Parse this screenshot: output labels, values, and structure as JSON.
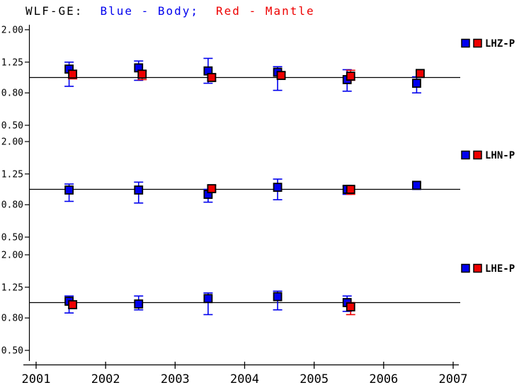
{
  "chart_data": {
    "type": "scatter",
    "title": {
      "station": "WLF-GE:",
      "legend_blue": "Blue - Body;",
      "legend_red": "Red - Mantle"
    },
    "x_range": [
      2001,
      2007
    ],
    "x_ticks": [
      "2001",
      "2002",
      "2003",
      "2004",
      "2005",
      "2006",
      "2007"
    ],
    "y_scale": "log",
    "y_range": [
      0.5,
      2.0
    ],
    "y_ticks": [
      "2.00",
      "1.25",
      "0.80",
      "0.50"
    ],
    "y_tick_values": [
      2.0,
      1.25,
      0.8,
      0.5
    ],
    "reference_value": 1.0,
    "grid": "off",
    "legend_position": "top-right-of-each-panel",
    "colors": {
      "body": "#0000ee",
      "mantle": "#ee0000",
      "axis": "#000000"
    },
    "series_names": {
      "body": "Body",
      "mantle": "Mantle"
    },
    "panels": [
      {
        "label": "LHZ-P",
        "body": [
          {
            "x": 2001.5,
            "v": 1.13,
            "lo": 0.88,
            "hi": 1.25
          },
          {
            "x": 2002.5,
            "v": 1.15,
            "lo": 0.96,
            "hi": 1.27
          },
          {
            "x": 2003.5,
            "v": 1.1,
            "lo": 0.92,
            "hi": 1.32
          },
          {
            "x": 2004.5,
            "v": 1.08,
            "lo": 0.83,
            "hi": 1.17
          },
          {
            "x": 2005.5,
            "v": 0.97,
            "lo": 0.82,
            "hi": 1.12
          },
          {
            "x": 2006.5,
            "v": 0.92,
            "lo": 0.8,
            "hi": 1.01
          }
        ],
        "mantle": [
          {
            "x": 2001.5,
            "v": 1.05,
            "lo": 0.98,
            "hi": 1.11
          },
          {
            "x": 2002.5,
            "v": 1.05,
            "lo": 0.97,
            "hi": 1.1
          },
          {
            "x": 2003.5,
            "v": 1.0,
            "lo": 0.95,
            "hi": 1.05
          },
          {
            "x": 2004.5,
            "v": 1.03,
            "lo": 0.99,
            "hi": 1.08
          },
          {
            "x": 2005.5,
            "v": 1.02,
            "lo": 0.96,
            "hi": 1.11
          },
          {
            "x": 2006.5,
            "v": 1.06,
            "lo": 1.01,
            "hi": 1.1
          }
        ]
      },
      {
        "label": "LHN-P",
        "body": [
          {
            "x": 2001.5,
            "v": 0.99,
            "lo": 0.84,
            "hi": 1.08
          },
          {
            "x": 2002.5,
            "v": 0.99,
            "lo": 0.82,
            "hi": 1.11
          },
          {
            "x": 2003.5,
            "v": 0.93,
            "lo": 0.83,
            "hi": 1.0
          },
          {
            "x": 2004.5,
            "v": 1.03,
            "lo": 0.86,
            "hi": 1.16
          },
          {
            "x": 2005.5,
            "v": 1.0,
            "lo": 0.93,
            "hi": 1.05
          },
          {
            "x": 2006.5,
            "v": 1.06,
            "lo": 1.0,
            "hi": 1.1
          }
        ],
        "mantle": [
          {
            "x": 2003.5,
            "v": 1.01,
            "lo": 0.97,
            "hi": 1.06
          },
          {
            "x": 2005.5,
            "v": 1.0,
            "lo": 0.93,
            "hi": 1.04
          }
        ]
      },
      {
        "label": "LHE-P",
        "body": [
          {
            "x": 2001.5,
            "v": 1.02,
            "lo": 0.86,
            "hi": 1.1
          },
          {
            "x": 2002.5,
            "v": 0.98,
            "lo": 0.9,
            "hi": 1.1
          },
          {
            "x": 2003.5,
            "v": 1.06,
            "lo": 0.84,
            "hi": 1.15
          },
          {
            "x": 2004.5,
            "v": 1.09,
            "lo": 0.9,
            "hi": 1.18
          },
          {
            "x": 2005.5,
            "v": 1.0,
            "lo": 0.88,
            "hi": 1.1
          }
        ],
        "mantle": [
          {
            "x": 2001.5,
            "v": 0.97,
            "lo": 0.92,
            "hi": 1.02
          },
          {
            "x": 2005.5,
            "v": 0.94,
            "lo": 0.84,
            "hi": 1.0
          }
        ]
      }
    ]
  }
}
